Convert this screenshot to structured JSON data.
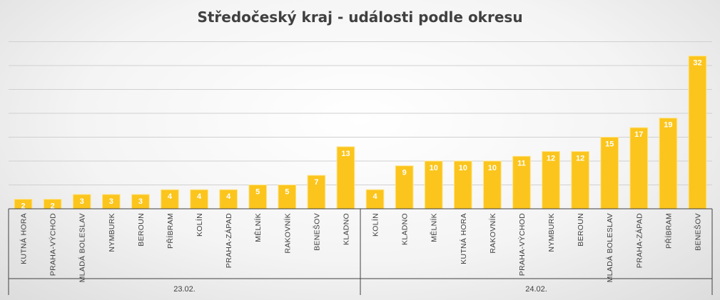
{
  "chart_data": {
    "type": "bar",
    "title": "Středočeský kraj - události podle okresu",
    "grid": true,
    "ylim": [
      0,
      35
    ],
    "colors": {
      "bar": "#fbc51d",
      "bar_edge": "#ffe38a",
      "label": "#ffffff",
      "grid": "#d0d0d0",
      "axis": "#404040"
    },
    "groups": [
      {
        "label": "23.02.",
        "categories": [
          "KUTNÁ HORA",
          "PRAHA-VÝCHOD",
          "MLADÁ BOLESLAV",
          "NYMBURK",
          "BEROUN",
          "PŘÍBRAM",
          "KOLÍN",
          "PRAHA-ZÁPAD",
          "MĚLNÍK",
          "RAKOVNÍK",
          "BENEŠOV",
          "KLADNO"
        ],
        "values": [
          2,
          2,
          3,
          3,
          3,
          4,
          4,
          4,
          5,
          5,
          7,
          13
        ]
      },
      {
        "label": "24.02.",
        "categories": [
          "KOLÍN",
          "KLADNO",
          "MĚLNÍK",
          "KUTNÁ HORA",
          "RAKOVNÍK",
          "PRAHA-VÝCHOD",
          "NYMBURK",
          "BEROUN",
          "MLADÁ BOLESLAV",
          "PRAHA-ZÁPAD",
          "PŘÍBRAM",
          "BENEŠOV"
        ],
        "values": [
          4,
          9,
          10,
          10,
          10,
          11,
          12,
          12,
          15,
          17,
          19,
          32
        ]
      }
    ]
  }
}
